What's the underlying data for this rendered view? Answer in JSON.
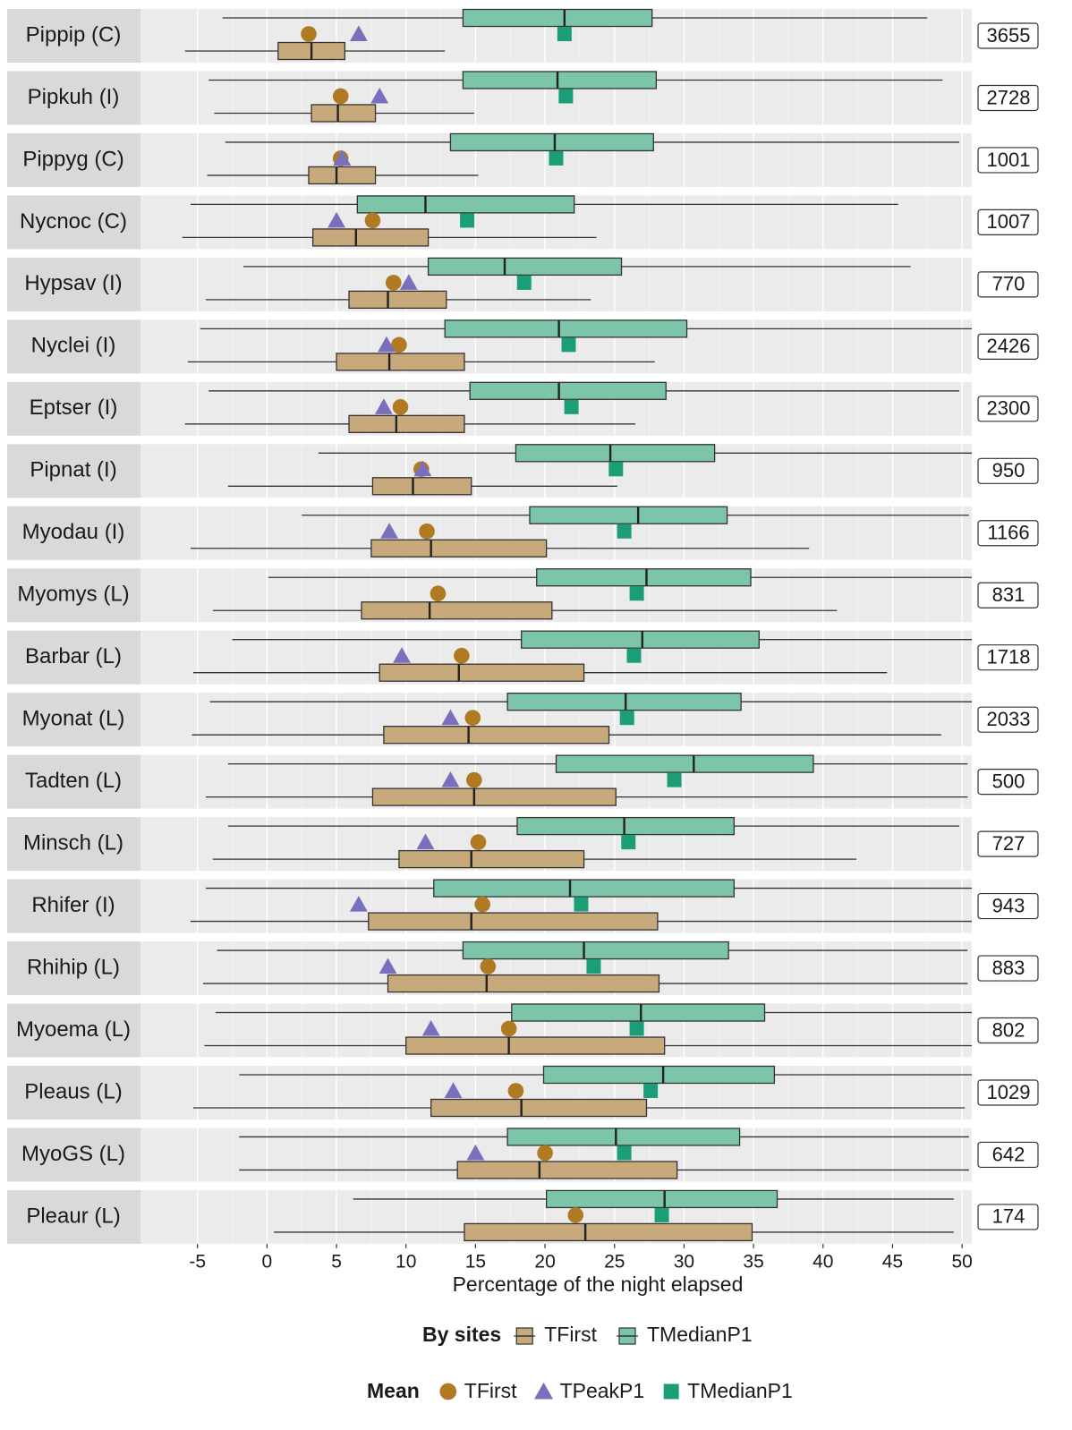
{
  "chart_data": {
    "type": "boxplot",
    "xlabel": "Percentage of the night elapsed",
    "xlim": [
      -9.1,
      50.7
    ],
    "xticks": [
      -5,
      0,
      5,
      10,
      15,
      20,
      25,
      30,
      35,
      40,
      45,
      50
    ],
    "grid": true,
    "box_legend_title": "By sites",
    "mean_legend_title": "Mean",
    "box_series": [
      {
        "name": "TFirst",
        "color": "#c8a97c"
      },
      {
        "name": "TMedianP1",
        "color": "#7cc5a8"
      }
    ],
    "mean_series": [
      {
        "name": "TFirst",
        "color": "#b07a22",
        "shape": "circle"
      },
      {
        "name": "TPeakP1",
        "color": "#7a6fbd",
        "shape": "triangle"
      },
      {
        "name": "TMedianP1",
        "color": "#1b9e77",
        "shape": "square"
      }
    ],
    "panels": [
      {
        "name": "Pippip (C)",
        "n": "3655",
        "boxes": [
          [
            -5.9,
            0.8,
            3.2,
            5.6,
            12.8
          ],
          [
            -3.2,
            14.1,
            21.4,
            27.7,
            47.5
          ]
        ],
        "means": [
          3.0,
          6.6,
          21.4
        ]
      },
      {
        "name": "Pipkuh (I)",
        "n": "2728",
        "boxes": [
          [
            -3.8,
            3.2,
            5.1,
            7.8,
            14.9
          ],
          [
            -4.2,
            14.1,
            20.9,
            28.0,
            48.6
          ]
        ],
        "means": [
          5.3,
          8.1,
          21.5
        ]
      },
      {
        "name": "Pippyg (C)",
        "n": "1001",
        "boxes": [
          [
            -4.3,
            3.0,
            5.0,
            7.8,
            15.2
          ],
          [
            -3.0,
            13.2,
            20.7,
            27.8,
            49.8
          ]
        ],
        "means": [
          5.3,
          5.4,
          20.8
        ]
      },
      {
        "name": "Nycnoc (C)",
        "n": "1007",
        "boxes": [
          [
            -6.1,
            3.3,
            6.4,
            11.6,
            23.7
          ],
          [
            -5.5,
            6.5,
            11.4,
            22.1,
            45.4
          ]
        ],
        "means": [
          7.6,
          5.0,
          14.4
        ]
      },
      {
        "name": "Hypsav (I)",
        "n": "770",
        "boxes": [
          [
            -4.4,
            5.9,
            8.7,
            12.9,
            23.3
          ],
          [
            -1.7,
            11.6,
            17.1,
            25.5,
            46.3
          ]
        ],
        "means": [
          9.1,
          10.2,
          18.5
        ]
      },
      {
        "name": "Nyclei (I)",
        "n": "2426",
        "boxes": [
          [
            -5.7,
            5.0,
            8.8,
            14.2,
            27.9
          ],
          [
            -4.8,
            12.8,
            21.0,
            30.2,
            50.7
          ]
        ],
        "means": [
          9.5,
          8.6,
          21.7
        ]
      },
      {
        "name": "Eptser (I)",
        "n": "2300",
        "boxes": [
          [
            -5.9,
            5.9,
            9.3,
            14.2,
            26.5
          ],
          [
            -4.2,
            14.6,
            21.0,
            28.7,
            49.8
          ]
        ],
        "means": [
          9.6,
          8.4,
          21.9
        ]
      },
      {
        "name": "Pipnat (I)",
        "n": "950",
        "boxes": [
          [
            -2.8,
            7.6,
            10.5,
            14.7,
            25.2
          ],
          [
            3.7,
            17.9,
            24.7,
            32.2,
            50.7
          ]
        ],
        "means": [
          11.1,
          11.2,
          25.1
        ]
      },
      {
        "name": "Myodau (I)",
        "n": "1166",
        "boxes": [
          [
            -5.5,
            7.5,
            11.8,
            20.1,
            39.0
          ],
          [
            2.5,
            18.9,
            26.7,
            33.1,
            50.5
          ]
        ],
        "means": [
          11.5,
          8.8,
          25.7
        ]
      },
      {
        "name": "Myomys (L)",
        "n": "831",
        "boxes": [
          [
            -3.9,
            6.8,
            11.7,
            20.5,
            41.0
          ],
          [
            0.1,
            19.4,
            27.3,
            34.8,
            50.7
          ]
        ],
        "means": [
          12.3,
          null,
          26.6
        ]
      },
      {
        "name": "Barbar (L)",
        "n": "1718",
        "boxes": [
          [
            -5.3,
            8.1,
            13.8,
            22.8,
            44.6
          ],
          [
            -2.5,
            18.3,
            27.0,
            35.4,
            50.7
          ]
        ],
        "means": [
          14.0,
          9.7,
          26.4
        ]
      },
      {
        "name": "Myonat (L)",
        "n": "2033",
        "boxes": [
          [
            -5.4,
            8.4,
            14.5,
            24.6,
            48.5
          ],
          [
            -4.1,
            17.3,
            25.8,
            34.1,
            50.7
          ]
        ],
        "means": [
          14.8,
          13.2,
          25.9
        ]
      },
      {
        "name": "Tadten (L)",
        "n": "500",
        "boxes": [
          [
            -4.4,
            7.6,
            14.9,
            25.1,
            50.4
          ],
          [
            -2.8,
            20.8,
            30.7,
            39.3,
            50.4
          ]
        ],
        "means": [
          14.9,
          13.2,
          29.3
        ]
      },
      {
        "name": "Minsch (L)",
        "n": "727",
        "boxes": [
          [
            -3.9,
            9.5,
            14.7,
            22.8,
            42.4
          ],
          [
            -2.8,
            18.0,
            25.7,
            33.6,
            49.8
          ]
        ],
        "means": [
          15.2,
          11.4,
          26.0
        ]
      },
      {
        "name": "Rhifer (I)",
        "n": "943",
        "boxes": [
          [
            -5.5,
            7.3,
            14.7,
            28.1,
            50.7
          ],
          [
            -4.4,
            12.0,
            21.8,
            33.6,
            50.7
          ]
        ],
        "means": [
          15.5,
          6.6,
          22.6
        ]
      },
      {
        "name": "Rhihip (L)",
        "n": "883",
        "boxes": [
          [
            -4.6,
            8.7,
            15.8,
            28.2,
            50.4
          ],
          [
            -3.6,
            14.1,
            22.8,
            33.2,
            50.4
          ]
        ],
        "means": [
          15.9,
          8.7,
          23.5
        ]
      },
      {
        "name": "Myoema (L)",
        "n": "802",
        "boxes": [
          [
            -4.5,
            10.0,
            17.4,
            28.6,
            50.7
          ],
          [
            -3.7,
            17.6,
            26.9,
            35.8,
            50.7
          ]
        ],
        "means": [
          17.4,
          11.8,
          26.6
        ]
      },
      {
        "name": "Pleaus (L)",
        "n": "1029",
        "boxes": [
          [
            -5.3,
            11.8,
            18.3,
            27.3,
            50.2
          ],
          [
            -2.0,
            19.9,
            28.5,
            36.5,
            50.7
          ]
        ],
        "means": [
          17.9,
          13.4,
          27.6
        ]
      },
      {
        "name": "MyoGS (L)",
        "n": "642",
        "boxes": [
          [
            -2.0,
            13.7,
            19.6,
            29.5,
            50.5
          ],
          [
            -2.0,
            17.3,
            25.1,
            34.0,
            50.5
          ]
        ],
        "means": [
          20.0,
          15.0,
          25.7
        ]
      },
      {
        "name": "Pleaur (L)",
        "n": "174",
        "boxes": [
          [
            0.5,
            14.2,
            22.9,
            34.9,
            49.4
          ],
          [
            6.2,
            20.1,
            28.6,
            36.7,
            49.4
          ]
        ],
        "means": [
          22.2,
          null,
          28.4
        ]
      }
    ]
  }
}
